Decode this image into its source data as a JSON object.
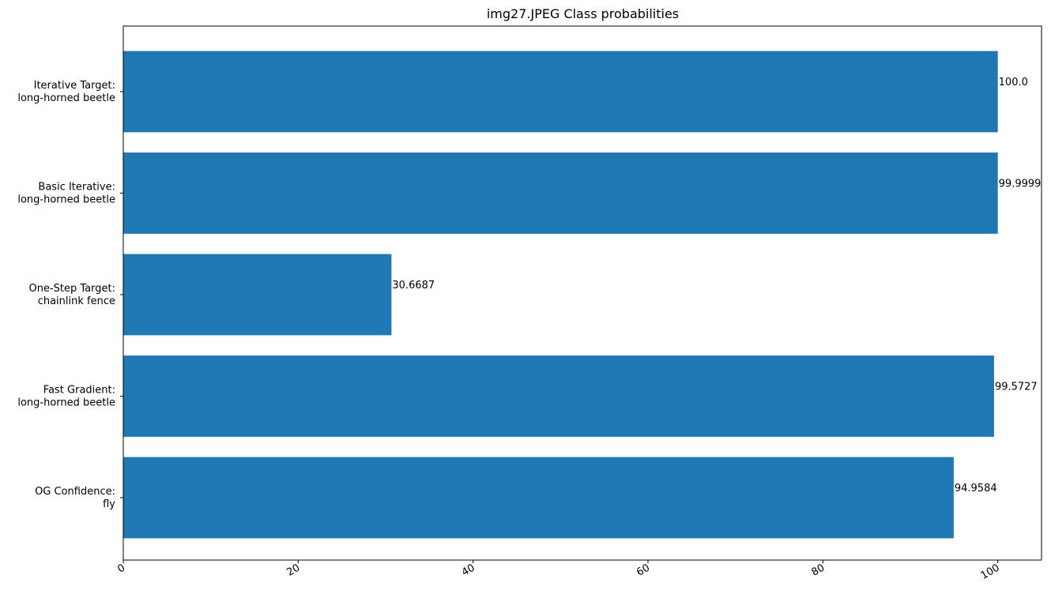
{
  "chart_data": {
    "type": "bar",
    "orientation": "horizontal",
    "title": "img27.JPEG Class probabilities",
    "xlabel": "",
    "ylabel": "",
    "categories": [
      [
        "OG Confidence:",
        "fly"
      ],
      [
        "Fast Gradient:",
        "long-horned beetle"
      ],
      [
        "One-Step Target:",
        "chainlink fence"
      ],
      [
        "Basic Iterative:",
        "long-horned beetle"
      ],
      [
        "Iterative Target:",
        "long-horned beetle"
      ]
    ],
    "values": [
      94.9584,
      99.5727,
      30.6687,
      99.9999,
      100.0
    ],
    "value_labels": [
      "94.9584",
      "99.5727",
      "30.6687",
      "99.9999",
      "100.0"
    ],
    "xlim": [
      0,
      105
    ],
    "xticks": [
      0,
      20,
      40,
      60,
      80,
      100
    ],
    "bar_color": "#1f77b4",
    "grid": false,
    "legend": "none"
  }
}
